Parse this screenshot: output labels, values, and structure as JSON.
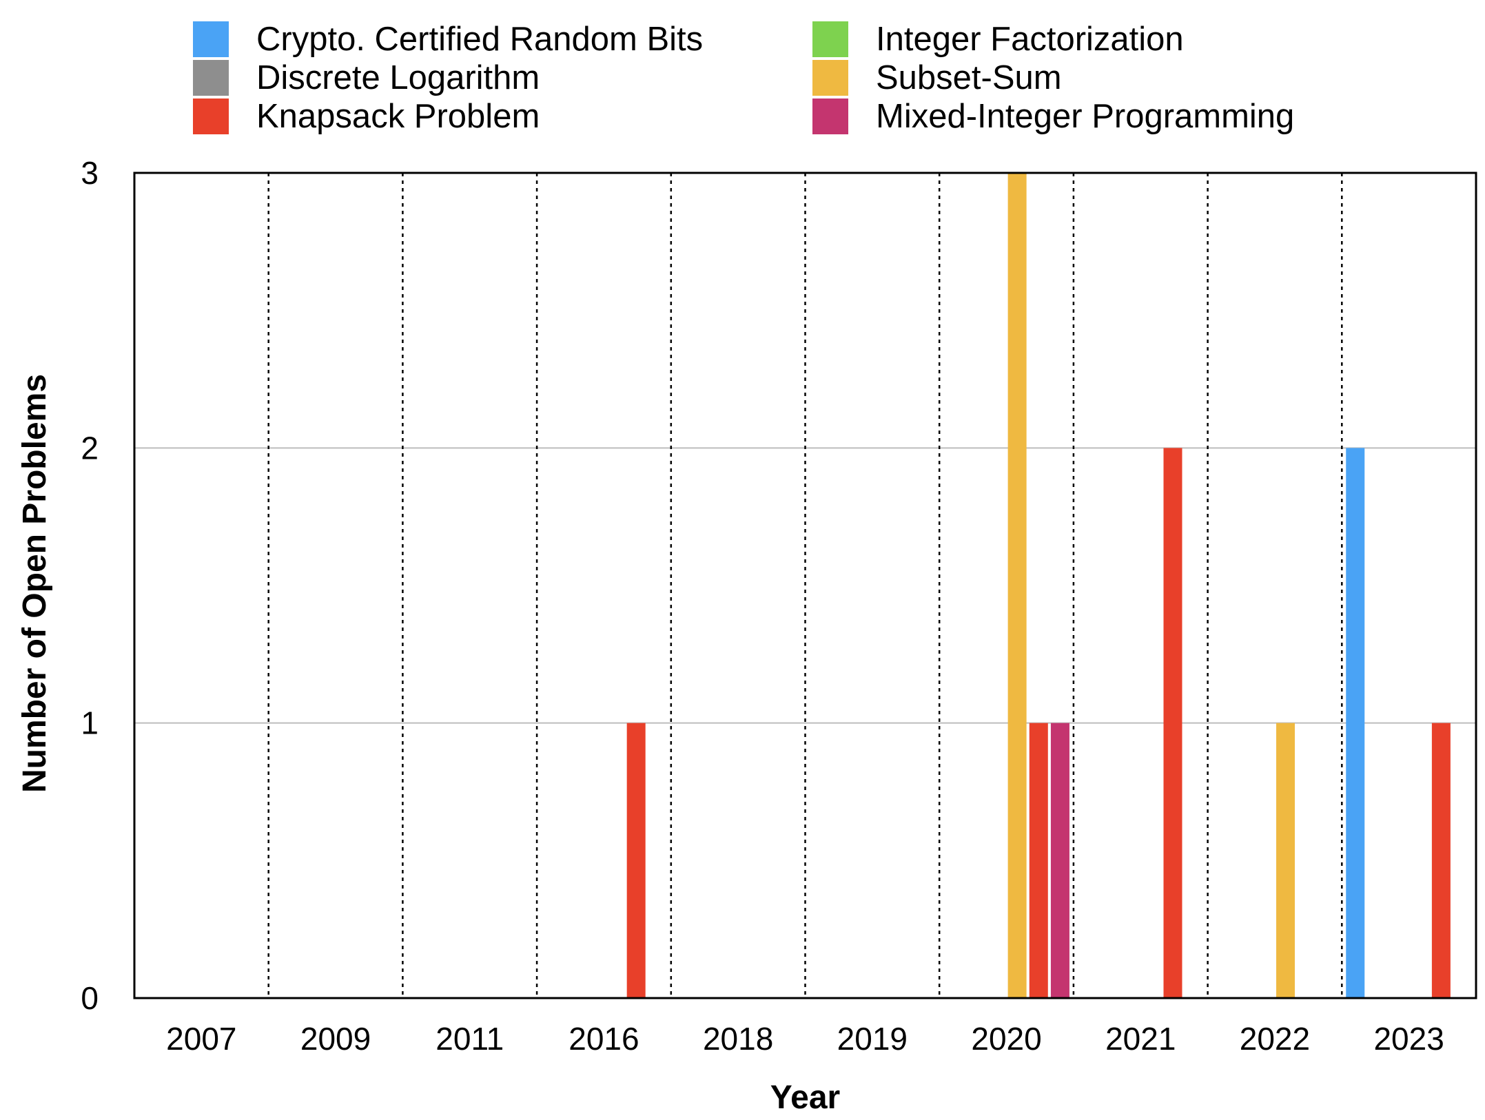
{
  "chart_data": {
    "type": "bar",
    "title": "",
    "xlabel": "Year",
    "ylabel": "Number of Open Problems",
    "ylim": [
      0,
      3
    ],
    "yticks": [
      "0",
      "1",
      "2",
      "3"
    ],
    "grid": "horizontal solid gridlines; dotted vertical separators between years",
    "legend_position": "top",
    "categories": [
      "2007",
      "2009",
      "2011",
      "2016",
      "2018",
      "2019",
      "2020",
      "2021",
      "2022",
      "2023"
    ],
    "series": [
      {
        "name": "Crypto. Certified Random Bits",
        "color": "#4aa3f5",
        "values": [
          0,
          0,
          0,
          0,
          0,
          0,
          0,
          0,
          0,
          2
        ]
      },
      {
        "name": "Integer Factorization",
        "color": "#7ed24f",
        "values": [
          0,
          0,
          0,
          0,
          0,
          0,
          0,
          0,
          0,
          0
        ]
      },
      {
        "name": "Discrete Logarithm",
        "color": "#8e8e8e",
        "values": [
          0,
          0,
          0,
          0,
          0,
          0,
          0,
          0,
          0,
          0
        ]
      },
      {
        "name": "Subset-Sum",
        "color": "#efb941",
        "values": [
          0,
          0,
          0,
          0,
          0,
          0,
          3,
          0,
          1,
          0
        ]
      },
      {
        "name": "Knapsack Problem",
        "color": "#e8402a",
        "values": [
          0,
          0,
          0,
          1,
          0,
          0,
          1,
          2,
          0,
          1
        ]
      },
      {
        "name": "Mixed-Integer Programming",
        "color": "#c4356f",
        "values": [
          0,
          0,
          0,
          0,
          0,
          0,
          1,
          0,
          0,
          0
        ]
      }
    ]
  }
}
